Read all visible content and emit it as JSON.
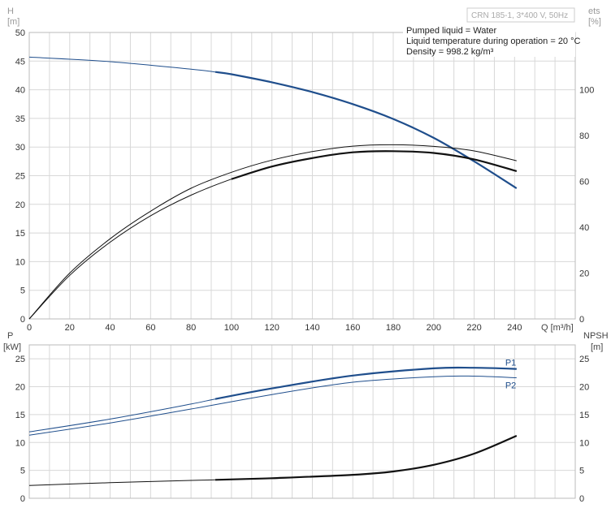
{
  "header": {
    "product_label": "CRN 185-1, 3*400 V, 50Hz",
    "notes": [
      "Pumped liquid = Water",
      "Liquid temperature during operation = 20 °C",
      "Density = 998.2 kg/m³"
    ]
  },
  "chart_data": [
    {
      "type": "line",
      "name": "head-and-efficiency",
      "left_axis": {
        "label": "H",
        "unit": "[m]",
        "ylim": [
          0,
          50
        ],
        "ticks": [
          0,
          5,
          10,
          15,
          20,
          25,
          30,
          35,
          40,
          45,
          50
        ]
      },
      "right_axis": {
        "label": "ets",
        "unit": "[%]",
        "ylim": [
          0,
          125
        ],
        "ticks": [
          0,
          20,
          40,
          60,
          80,
          100
        ]
      },
      "x_axis": {
        "label": "Q [m³/h]",
        "xlim": [
          0,
          270
        ],
        "ticks": [
          0,
          20,
          40,
          60,
          80,
          100,
          120,
          140,
          160,
          180,
          200,
          220,
          240
        ]
      },
      "grid": true,
      "series": [
        {
          "axis": "left",
          "color": "#1f4e8c",
          "x": [
            0,
            40,
            80,
            92,
            100,
            120,
            140,
            160,
            180,
            200,
            220,
            241
          ],
          "y": [
            45.7,
            44.9,
            43.6,
            43.1,
            42.7,
            41.3,
            39.6,
            37.5,
            34.9,
            31.6,
            27.5,
            22.8
          ],
          "thick_from": 92
        },
        {
          "axis": "right",
          "color": "#111111",
          "x": [
            0,
            20,
            40,
            60,
            80,
            100,
            120,
            140,
            160,
            180,
            200,
            220,
            241
          ],
          "y": [
            0,
            19,
            33.5,
            45,
            54,
            61,
            66.5,
            70.2,
            72.7,
            73.2,
            72.4,
            69.6,
            64.5
          ],
          "thick_from": 92
        },
        {
          "axis": "right",
          "color": "#111111",
          "x": [
            0,
            20,
            40,
            60,
            80,
            100,
            120,
            140,
            160,
            180,
            200,
            220,
            241
          ],
          "y": [
            0,
            20,
            35,
            47,
            57,
            64,
            69.3,
            73,
            75.4,
            76,
            75.3,
            73.3,
            69
          ]
        }
      ]
    },
    {
      "type": "line",
      "name": "power-and-npsh",
      "left_axis": {
        "label": "P",
        "unit": "[kW]",
        "ylim": [
          0,
          27.5
        ],
        "ticks": [
          0,
          5,
          10,
          15,
          20,
          25
        ]
      },
      "right_axis": {
        "label": "NPSH",
        "unit": "[m]",
        "ylim": [
          0,
          27.5
        ],
        "ticks": [
          0,
          5,
          10,
          15,
          20,
          25
        ]
      },
      "x_axis": {
        "xlim": [
          0,
          270
        ],
        "ticks": [
          0,
          20,
          40,
          60,
          80,
          100,
          120,
          140,
          160,
          180,
          200,
          220,
          240
        ]
      },
      "grid": true,
      "series": [
        {
          "name": "P1",
          "axis": "left",
          "color": "#1f4e8c",
          "x": [
            0,
            40,
            80,
            92,
            120,
            160,
            200,
            220,
            241
          ],
          "y": [
            11.9,
            14.2,
            16.9,
            17.8,
            19.7,
            22.0,
            23.3,
            23.4,
            23.2
          ],
          "thick_from": 92
        },
        {
          "name": "P2",
          "axis": "left",
          "color": "#1f4e8c",
          "x": [
            0,
            40,
            80,
            120,
            160,
            200,
            220,
            241
          ],
          "y": [
            11.3,
            13.5,
            16.0,
            18.6,
            20.8,
            21.8,
            21.9,
            21.6
          ]
        },
        {
          "axis": "right",
          "color": "#111111",
          "x": [
            0,
            40,
            80,
            92,
            120,
            160,
            180,
            200,
            220,
            241
          ],
          "y": [
            2.3,
            2.8,
            3.2,
            3.3,
            3.6,
            4.2,
            4.8,
            6.0,
            8.0,
            11.2
          ],
          "thick_from": 92
        }
      ]
    }
  ]
}
